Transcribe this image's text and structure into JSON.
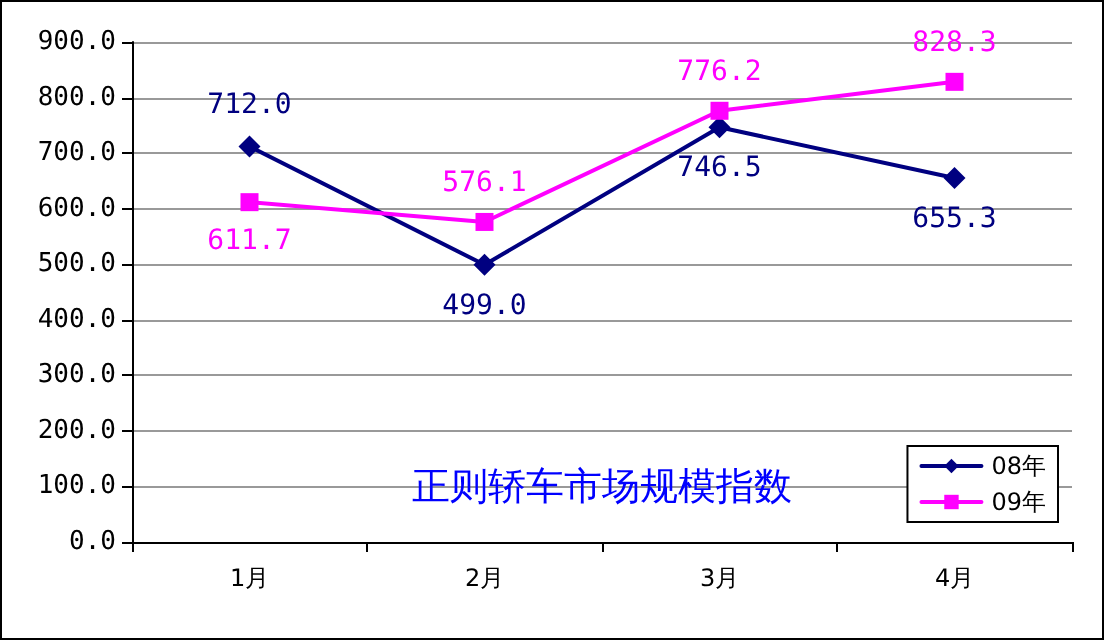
{
  "chart_data": {
    "type": "line",
    "title": "正则轿车市场规模指数",
    "categories": [
      "1月",
      "2月",
      "3月",
      "4月"
    ],
    "series": [
      {
        "name": "08年",
        "color": "#000080",
        "marker": "diamond",
        "values": [
          712.0,
          499.0,
          746.5,
          655.3
        ],
        "value_labels": [
          "712.0",
          "499.0",
          "746.5",
          "655.3"
        ]
      },
      {
        "name": "09年",
        "color": "#ff00ff",
        "marker": "square",
        "values": [
          611.7,
          576.1,
          776.2,
          828.3
        ],
        "value_labels": [
          "611.7",
          "576.1",
          "776.2",
          "828.3"
        ]
      }
    ],
    "ylim": [
      0,
      900
    ],
    "yticks": [
      {
        "value": 0,
        "label": "0.0"
      },
      {
        "value": 100,
        "label": "100.0"
      },
      {
        "value": 200,
        "label": "200.0"
      },
      {
        "value": 300,
        "label": "300.0"
      },
      {
        "value": 400,
        "label": "400.0"
      },
      {
        "value": 500,
        "label": "500.0"
      },
      {
        "value": 600,
        "label": "600.0"
      },
      {
        "value": 700,
        "label": "700.0"
      },
      {
        "value": 800,
        "label": "800.0"
      },
      {
        "value": 900,
        "label": "900.0"
      }
    ],
    "grid": "y",
    "legend": "bottom right",
    "line_style": "solid"
  }
}
